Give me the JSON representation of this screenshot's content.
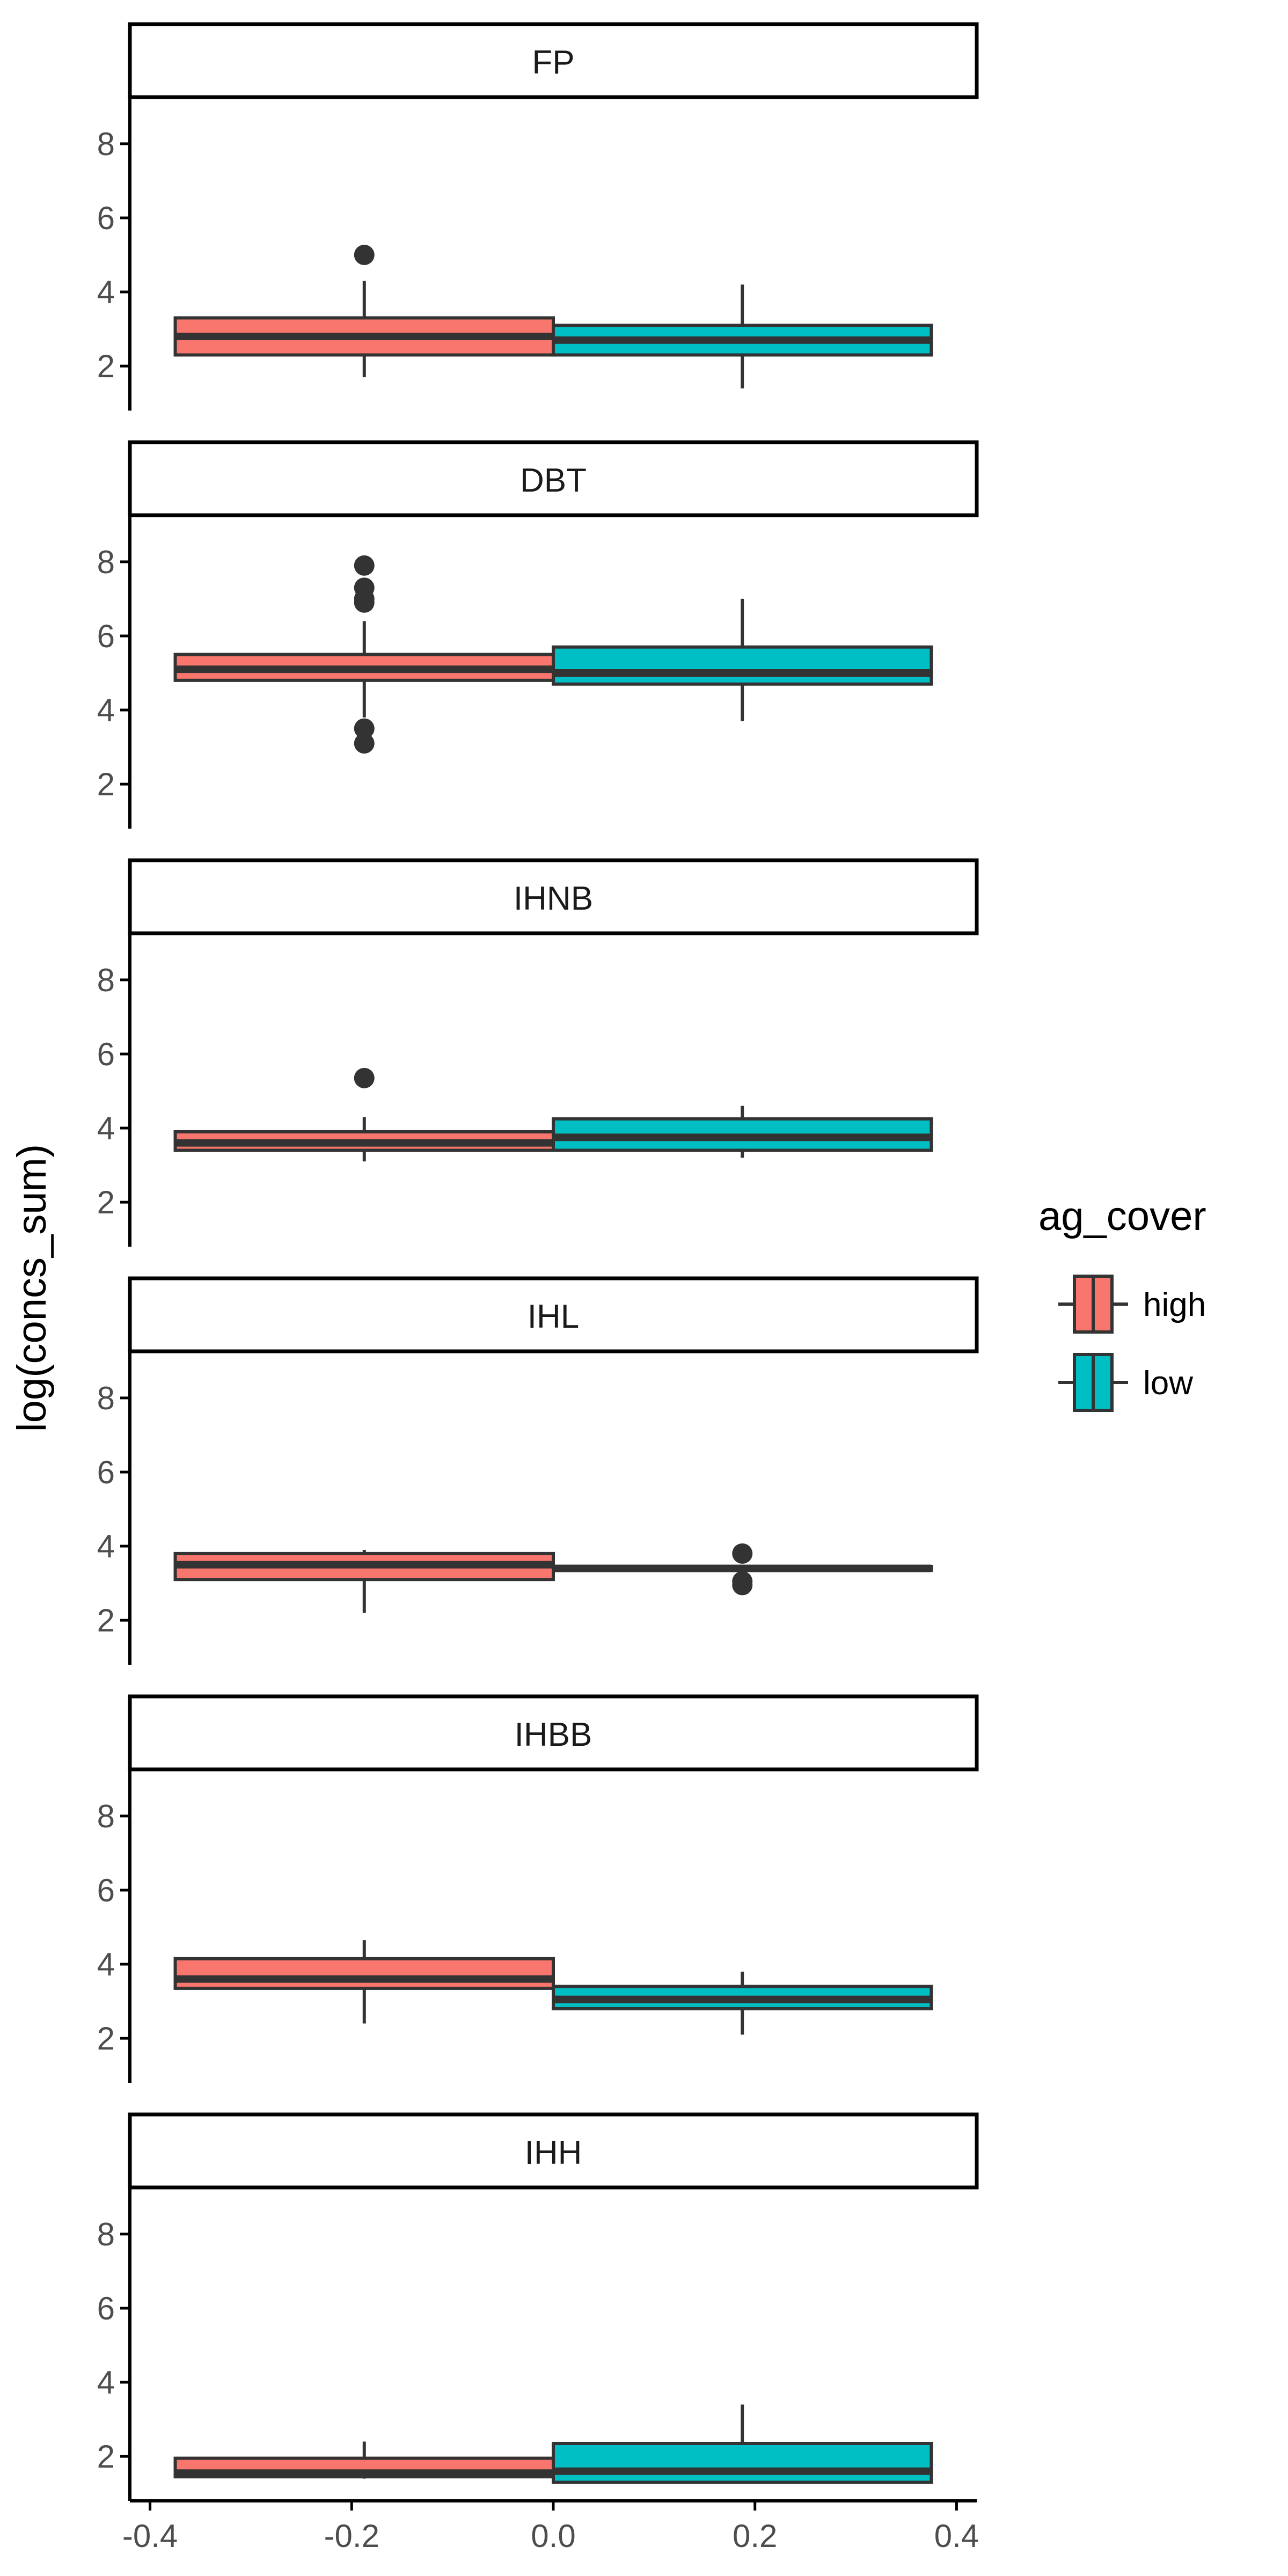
{
  "chart_data": {
    "type": "boxplot",
    "ylabel": "log(concs_sum)",
    "xlabel": "",
    "xlim": [
      -0.42,
      0.42
    ],
    "x_ticks": [
      -0.4,
      -0.2,
      0.0,
      0.2,
      0.4
    ],
    "x_tick_labels": [
      "-0.4",
      "-0.2",
      "0.0",
      "0.2",
      "0.4"
    ],
    "ylim": [
      0.8,
      9.2
    ],
    "y_ticks": [
      2,
      4,
      6,
      8
    ],
    "y_tick_labels": [
      "2",
      "4",
      "6",
      "8"
    ],
    "legend": {
      "title": "ag_cover",
      "position": "right",
      "entries": [
        {
          "label": "high",
          "color": "#F8766D"
        },
        {
          "label": "low",
          "color": "#00BFC4"
        }
      ]
    },
    "groups": [
      {
        "name": "high",
        "color": "#F8766D",
        "x_range": [
          -0.375,
          0.0
        ]
      },
      {
        "name": "low",
        "color": "#00BFC4",
        "x_range": [
          0.0,
          0.375
        ]
      }
    ],
    "panels": [
      {
        "title": "FP",
        "boxes": [
          {
            "group": "high",
            "whisker_low": 1.7,
            "q1": 2.3,
            "median": 2.8,
            "q3": 3.3,
            "whisker_high": 4.3,
            "outliers": [
              5.0
            ]
          },
          {
            "group": "low",
            "whisker_low": 1.4,
            "q1": 2.3,
            "median": 2.7,
            "q3": 3.1,
            "whisker_high": 4.2,
            "outliers": []
          }
        ]
      },
      {
        "title": "DBT",
        "boxes": [
          {
            "group": "high",
            "whisker_low": 3.8,
            "q1": 4.8,
            "median": 5.1,
            "q3": 5.5,
            "whisker_high": 6.4,
            "outliers": [
              7.9,
              7.3,
              7.0,
              6.9,
              3.5,
              3.1
            ]
          },
          {
            "group": "low",
            "whisker_low": 3.7,
            "q1": 4.7,
            "median": 5.0,
            "q3": 5.7,
            "whisker_high": 7.0,
            "outliers": []
          }
        ]
      },
      {
        "title": "IHNB",
        "boxes": [
          {
            "group": "high",
            "whisker_low": 3.1,
            "q1": 3.4,
            "median": 3.6,
            "q3": 3.9,
            "whisker_high": 4.3,
            "outliers": [
              5.35
            ]
          },
          {
            "group": "low",
            "whisker_low": 3.2,
            "q1": 3.4,
            "median": 3.75,
            "q3": 4.25,
            "whisker_high": 4.6,
            "outliers": []
          }
        ]
      },
      {
        "title": "IHL",
        "boxes": [
          {
            "group": "high",
            "whisker_low": 2.2,
            "q1": 3.1,
            "median": 3.5,
            "q3": 3.8,
            "whisker_high": 3.9,
            "outliers": []
          },
          {
            "group": "low",
            "whisker_low": 3.35,
            "q1": 3.35,
            "median": 3.4,
            "q3": 3.45,
            "whisker_high": 3.45,
            "outliers": [
              3.8,
              3.05,
              2.95
            ]
          }
        ]
      },
      {
        "title": "IHBB",
        "boxes": [
          {
            "group": "high",
            "whisker_low": 2.4,
            "q1": 3.35,
            "median": 3.6,
            "q3": 4.15,
            "whisker_high": 4.65,
            "outliers": []
          },
          {
            "group": "low",
            "whisker_low": 2.1,
            "q1": 2.8,
            "median": 3.05,
            "q3": 3.4,
            "whisker_high": 3.8,
            "outliers": []
          }
        ]
      },
      {
        "title": "IHH",
        "boxes": [
          {
            "group": "high",
            "whisker_low": 1.4,
            "q1": 1.45,
            "median": 1.55,
            "q3": 1.95,
            "whisker_high": 2.4,
            "outliers": []
          },
          {
            "group": "low",
            "whisker_low": 1.3,
            "q1": 1.3,
            "median": 1.6,
            "q3": 2.35,
            "whisker_high": 3.4,
            "outliers": []
          }
        ]
      }
    ]
  }
}
